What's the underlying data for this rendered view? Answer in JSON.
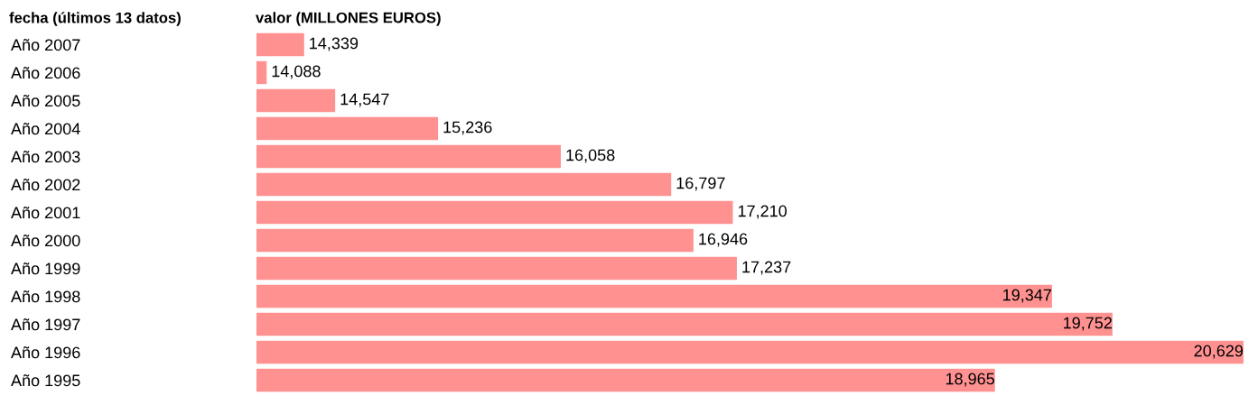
{
  "chart_data": {
    "type": "bar",
    "orientation": "horizontal",
    "ylabel": "fecha (últimos 13 datos)",
    "xlabel": "valor (MILLONES EUROS)",
    "categories": [
      "Año 2007",
      "Año 2006",
      "Año 2005",
      "Año 2004",
      "Año 2003",
      "Año 2002",
      "Año 2001",
      "Año 2000",
      "Año 1999",
      "Año 1998",
      "Año 1997",
      "Año 1996",
      "Año 1995"
    ],
    "values": [
      14339,
      14088,
      14547,
      15236,
      16058,
      16797,
      17210,
      16946,
      17237,
      19347,
      19752,
      20629,
      18965
    ],
    "value_labels": [
      "14,339",
      "14,088",
      "14,547",
      "15,236",
      "16,058",
      "16,797",
      "17,210",
      "16,946",
      "17,237",
      "19,347",
      "19,752",
      "20,629",
      "18,965"
    ],
    "color": "#ff9191",
    "xlim": [
      14020,
      20660
    ],
    "tick_labels": "y",
    "grid": false,
    "legend": false
  }
}
